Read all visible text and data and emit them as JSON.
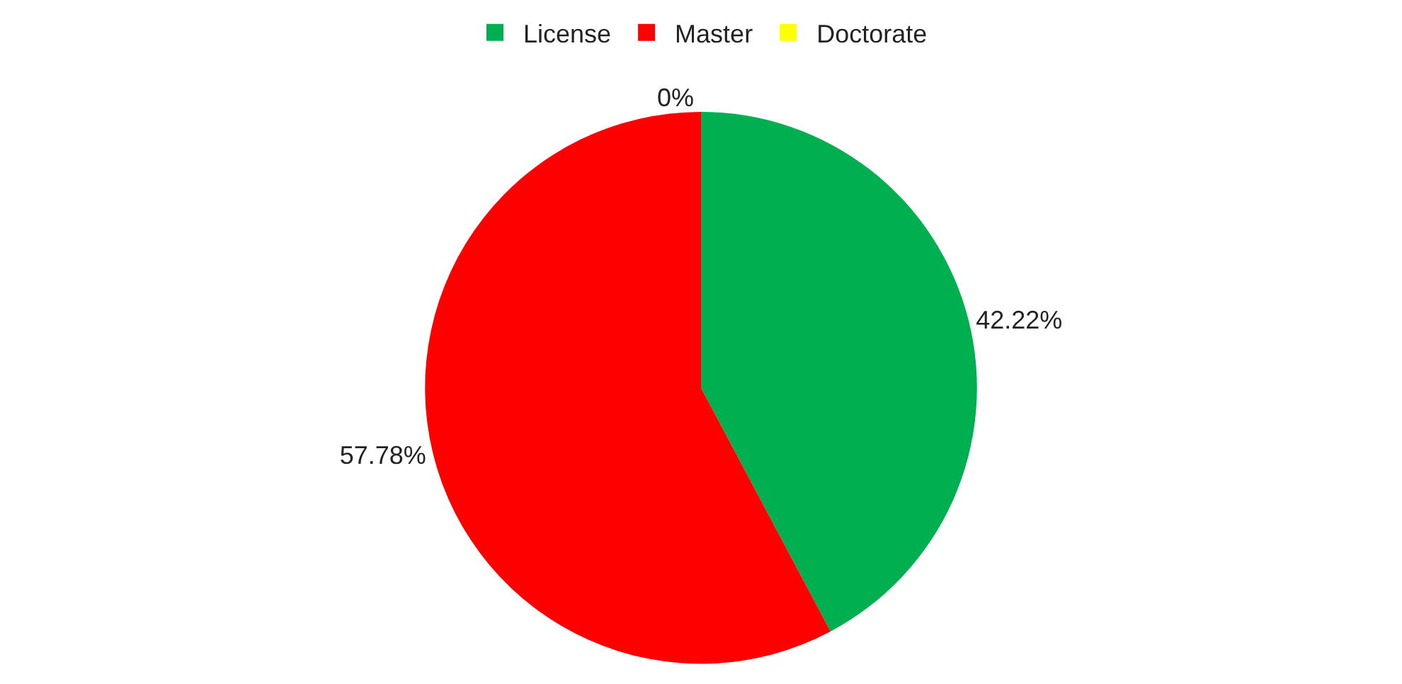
{
  "chart_data": {
    "type": "pie",
    "categories": [
      "License",
      "Master",
      "Doctorate"
    ],
    "values": [
      42.22,
      57.78,
      0
    ],
    "colors": [
      "#00b050",
      "#ff0000",
      "#ffff00"
    ],
    "value_labels": [
      "42.22%",
      "57.78%",
      "0%"
    ],
    "legend": "top"
  }
}
